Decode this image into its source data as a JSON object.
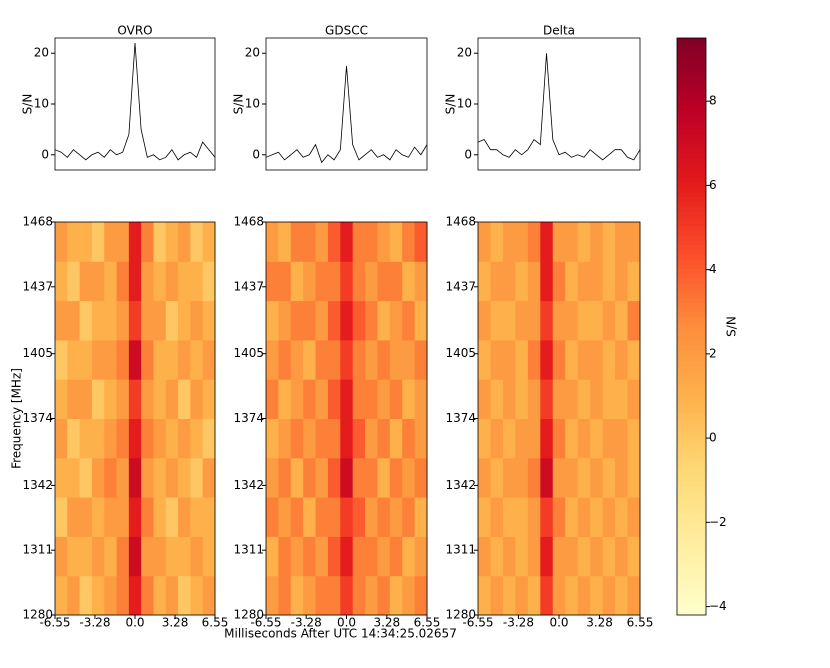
{
  "chart_data": [
    {
      "type": "line",
      "title": "OVRO",
      "ylabel": "S/N",
      "color": "#000000",
      "x": [
        -6.55,
        -6.05,
        -5.54,
        -5.04,
        -4.53,
        -4.03,
        -3.53,
        -3.02,
        -2.52,
        -2.02,
        -1.51,
        -1.01,
        -0.5,
        0,
        0.5,
        1.01,
        1.51,
        2.02,
        2.52,
        3.02,
        3.53,
        4.03,
        4.53,
        5.04,
        5.54,
        6.05,
        6.55
      ],
      "values": [
        1,
        0.5,
        -0.5,
        1,
        0,
        -1,
        0,
        0.5,
        -0.5,
        1,
        0,
        0.5,
        4,
        22,
        5,
        -0.5,
        0,
        -1,
        -0.5,
        1,
        -1,
        0,
        0.5,
        -0.5,
        2.5,
        1,
        -0.5
      ],
      "xlim": [
        -6.55,
        6.55
      ],
      "ylim": [
        -3,
        23
      ],
      "yticks": [
        0,
        10,
        20
      ]
    },
    {
      "type": "line",
      "title": "GDSCC",
      "ylabel": "S/N",
      "color": "#000000",
      "x": [
        -6.55,
        -6.05,
        -5.54,
        -5.04,
        -4.53,
        -4.03,
        -3.53,
        -3.02,
        -2.52,
        -2.02,
        -1.51,
        -1.01,
        -0.5,
        0,
        0.5,
        1.01,
        1.51,
        2.02,
        2.52,
        3.02,
        3.53,
        4.03,
        4.53,
        5.04,
        5.54,
        6.05,
        6.55
      ],
      "values": [
        -0.5,
        0,
        0.5,
        -1,
        0,
        1,
        -0.5,
        0,
        2,
        -1.5,
        0,
        -1,
        1,
        17.5,
        2,
        -1,
        0,
        1,
        -0.5,
        0,
        -1,
        1,
        0,
        -0.5,
        1.5,
        0,
        2
      ],
      "xlim": [
        -6.55,
        6.55
      ],
      "ylim": [
        -3,
        23
      ],
      "yticks": [
        0,
        10,
        20
      ]
    },
    {
      "type": "line",
      "title": "Delta",
      "ylabel": "S/N",
      "color": "#000000",
      "x": [
        -6.55,
        -6.05,
        -5.54,
        -5.04,
        -4.53,
        -4.03,
        -3.53,
        -3.02,
        -2.52,
        -2.02,
        -1.51,
        -1.01,
        -0.5,
        0,
        0.5,
        1.01,
        1.51,
        2.02,
        2.52,
        3.02,
        3.53,
        4.03,
        4.53,
        5.04,
        5.54,
        6.05,
        6.55
      ],
      "values": [
        2.5,
        3,
        1,
        1,
        0,
        -0.5,
        1,
        0,
        1,
        3,
        2,
        20,
        3,
        0,
        0.5,
        -0.5,
        0,
        -0.5,
        1,
        0,
        -1,
        0,
        1,
        1,
        -0.5,
        -1,
        1
      ],
      "xlim": [
        -6.55,
        6.55
      ],
      "ylim": [
        -3,
        23
      ],
      "yticks": [
        0,
        10,
        20
      ]
    },
    {
      "type": "heatmap",
      "ylabel": "Frequency [MHz]",
      "xlim": [
        -6.55,
        6.55
      ],
      "xticks": [
        -6.55,
        -3.28,
        {
          "value": 0,
          "label": "0.0"
        },
        3.28,
        6.55
      ],
      "ylim": [
        1280,
        1468
      ],
      "yticks": [
        1280,
        1311,
        1342,
        1374,
        1405,
        1437,
        1468
      ],
      "z": [
        [
          1,
          2,
          0,
          1,
          2,
          3,
          6,
          3,
          1,
          2,
          0,
          1,
          2
        ],
        [
          2,
          1,
          1,
          2,
          1,
          3,
          7,
          2,
          2,
          1,
          1,
          2,
          1
        ],
        [
          0,
          2,
          2,
          1,
          2,
          2,
          6,
          3,
          1,
          0,
          2,
          1,
          1
        ],
        [
          1,
          1,
          0,
          2,
          3,
          2,
          7,
          2,
          1,
          2,
          1,
          0,
          2
        ],
        [
          2,
          0,
          1,
          1,
          2,
          3,
          6,
          3,
          2,
          1,
          2,
          1,
          0
        ],
        [
          1,
          2,
          2,
          0,
          1,
          2,
          5,
          2,
          1,
          2,
          0,
          2,
          1
        ],
        [
          0,
          1,
          1,
          2,
          2,
          3,
          7,
          3,
          1,
          1,
          2,
          1,
          2
        ],
        [
          2,
          2,
          0,
          1,
          1,
          2,
          5,
          2,
          2,
          0,
          1,
          2,
          1
        ],
        [
          1,
          0,
          2,
          2,
          1,
          3,
          6,
          2,
          1,
          2,
          1,
          1,
          0
        ],
        [
          2,
          1,
          1,
          0,
          2,
          2,
          6,
          3,
          0,
          1,
          2,
          0,
          1
        ]
      ]
    },
    {
      "type": "heatmap",
      "xlabel": "Milliseconds After UTC 14:34:25.02657",
      "xlim": [
        -6.55,
        6.55
      ],
      "xticks": [
        -6.55,
        -3.28,
        {
          "value": 0,
          "label": "0.0"
        },
        3.28,
        6.55
      ],
      "ylim": [
        1280,
        1468
      ],
      "yticks": [
        1280,
        1311,
        1342,
        1374,
        1405,
        1437,
        1468
      ],
      "z": [
        [
          2,
          3,
          1,
          2,
          3,
          3,
          5,
          3,
          2,
          3,
          1,
          2,
          3
        ],
        [
          1,
          3,
          2,
          3,
          2,
          4,
          6,
          3,
          3,
          2,
          3,
          1,
          2
        ],
        [
          3,
          2,
          3,
          1,
          3,
          3,
          5,
          4,
          2,
          3,
          2,
          3,
          1
        ],
        [
          2,
          3,
          1,
          3,
          2,
          4,
          7,
          3,
          3,
          1,
          3,
          2,
          3
        ],
        [
          1,
          2,
          3,
          2,
          3,
          3,
          6,
          4,
          2,
          3,
          1,
          3,
          2
        ],
        [
          3,
          1,
          2,
          3,
          2,
          4,
          6,
          3,
          3,
          2,
          3,
          1,
          2
        ],
        [
          2,
          3,
          2,
          1,
          3,
          3,
          5,
          3,
          2,
          3,
          2,
          2,
          3
        ],
        [
          1,
          2,
          3,
          3,
          2,
          4,
          6,
          4,
          3,
          1,
          2,
          3,
          1
        ],
        [
          3,
          3,
          1,
          2,
          3,
          3,
          5,
          3,
          2,
          3,
          3,
          1,
          2
        ],
        [
          2,
          1,
          3,
          3,
          2,
          4,
          6,
          3,
          3,
          2,
          1,
          3,
          4
        ]
      ]
    },
    {
      "type": "heatmap",
      "xlim": [
        -6.55,
        6.55
      ],
      "xticks": [
        -6.55,
        -3.28,
        {
          "value": 0,
          "label": "0.0"
        },
        3.28,
        6.55
      ],
      "ylim": [
        1280,
        1468
      ],
      "yticks": [
        1280,
        1311,
        1342,
        1374,
        1405,
        1437,
        1468
      ],
      "z": [
        [
          1,
          2,
          1,
          2,
          1,
          5,
          2,
          1,
          2,
          1,
          2,
          1,
          2
        ],
        [
          2,
          1,
          2,
          1,
          2,
          6,
          2,
          2,
          1,
          2,
          1,
          2,
          1
        ],
        [
          1,
          2,
          1,
          1,
          2,
          5,
          3,
          1,
          2,
          1,
          2,
          1,
          2
        ],
        [
          2,
          1,
          2,
          2,
          3,
          7,
          2,
          2,
          1,
          2,
          1,
          2,
          1
        ],
        [
          1,
          2,
          1,
          2,
          2,
          6,
          3,
          1,
          2,
          1,
          2,
          2,
          1
        ],
        [
          2,
          1,
          2,
          1,
          2,
          5,
          2,
          2,
          1,
          2,
          1,
          1,
          2
        ],
        [
          1,
          2,
          2,
          1,
          3,
          6,
          3,
          1,
          2,
          2,
          1,
          2,
          1
        ],
        [
          2,
          1,
          1,
          2,
          2,
          5,
          2,
          2,
          1,
          1,
          2,
          1,
          3
        ],
        [
          1,
          2,
          2,
          1,
          2,
          6,
          3,
          1,
          2,
          2,
          1,
          2,
          1
        ],
        [
          2,
          1,
          2,
          2,
          3,
          6,
          2,
          2,
          1,
          2,
          1,
          2,
          2
        ]
      ]
    },
    {
      "type": "colorbar",
      "label": "S/N",
      "ylim": [
        -4.2,
        9.5
      ],
      "yticks": [
        {
          "value": -4,
          "label": "−4"
        },
        {
          "value": -2,
          "label": "−2"
        },
        0,
        2,
        4,
        6,
        8
      ],
      "colormap": [
        "#ffffcc",
        "#ffeda0",
        "#fed976",
        "#feb24c",
        "#fd8d3c",
        "#fc4e2a",
        "#e31a1c",
        "#bd0026",
        "#800026"
      ]
    }
  ]
}
